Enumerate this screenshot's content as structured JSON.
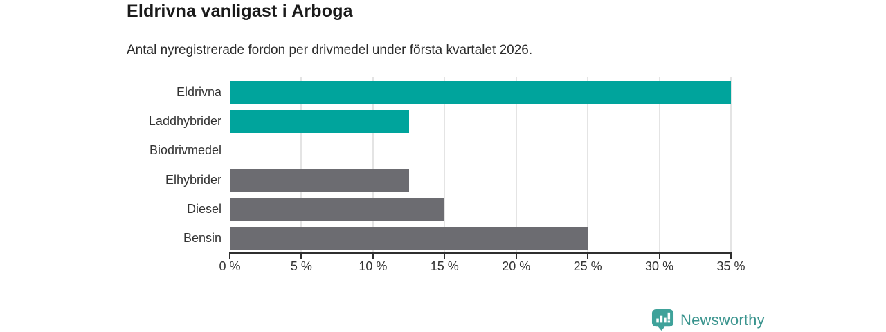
{
  "title": "Eldrivna vanligast i Arboga",
  "subtitle": "Antal nyregistrerade fordon per drivmedel under första kvartalet 2026.",
  "chart_data": {
    "type": "bar",
    "orientation": "horizontal",
    "title": "Eldrivna vanligast i Arboga",
    "subtitle": "Antal nyregistrerade fordon per drivmedel under första kvartalet 2026.",
    "categories": [
      "Eldrivna",
      "Laddhybrider",
      "Biodrivmedel",
      "Elhybrider",
      "Diesel",
      "Bensin"
    ],
    "values": [
      35,
      12.5,
      0,
      12.5,
      15,
      25
    ],
    "unit": "%",
    "xlim": [
      0,
      35
    ],
    "xticks": [
      0,
      5,
      10,
      15,
      20,
      25,
      30,
      35
    ],
    "xtick_labels": [
      "0 %",
      "5 %",
      "10 %",
      "15 %",
      "20 %",
      "25 %",
      "30 %",
      "35 %"
    ],
    "grid": true,
    "legend": "none",
    "bar_colors": [
      "#00a49c",
      "#00a49c",
      "#6c6c71",
      "#6c6c71",
      "#6c6c71",
      "#6c6c71"
    ],
    "colors": {
      "highlight": "#00a49c",
      "default": "#6c6c71",
      "gridline": "#e4e4e4",
      "axis": "#2f2f2f"
    }
  },
  "footer": {
    "brand": "Newsworthy",
    "logo_icon": "newsworthy-bar-chart-bubble-icon",
    "brand_color": "#3a948e",
    "icon_color": "#3fa29a"
  }
}
